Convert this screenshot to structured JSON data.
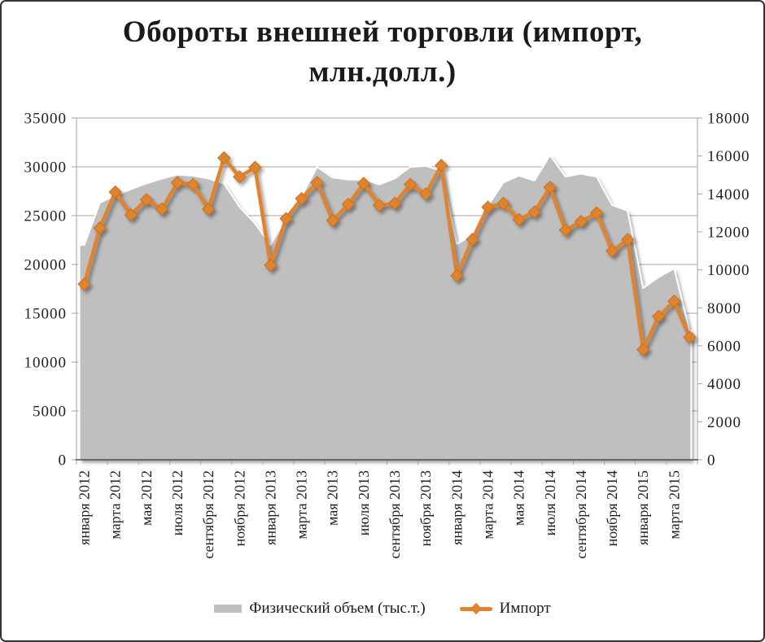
{
  "window": {
    "background": "#ffffff",
    "frame_border_color": "#333333"
  },
  "chart_data": {
    "type": "combo",
    "title": "Обороты внешней торговли (импорт, млн.долл.)",
    "title_lines": [
      "Обороты внешней торговли (импорт,",
      "млн.долл.)"
    ],
    "n_points": 40,
    "x_tick_label_every": 2,
    "x_tick_labels": [
      "января 2012",
      "марта 2012",
      "мая 2012",
      "июля 2012",
      "сентября 2012",
      "ноября 2012",
      "января 2013",
      "марта 2013",
      "мая 2013",
      "июля 2013",
      "сентября 2013",
      "ноября 2013",
      "января 2014",
      "марта 2014",
      "мая 2014",
      "июля 2014",
      "сентября 2014",
      "ноября 2014",
      "января 2015",
      "марта 2015"
    ],
    "left_axis": {
      "min": 0,
      "max": 35000,
      "step": 5000,
      "tick_labels": [
        "0",
        "5000",
        "10000",
        "15000",
        "20000",
        "25000",
        "30000",
        "35000"
      ]
    },
    "right_axis": {
      "min": 0,
      "max": 18000,
      "step": 2000,
      "tick_labels": [
        "0",
        "2000",
        "4000",
        "6000",
        "8000",
        "10000",
        "12000",
        "14000",
        "16000",
        "18000"
      ]
    },
    "grid": "horizontal",
    "legend_position": "bottom",
    "colors": {
      "area": "#bfbfbf",
      "line": "#e0832f",
      "line_edge": "#c8701f",
      "gridline": "#a3a3a3",
      "axis_line": "#a3a3a3",
      "x_axis_line": "#4d4d4d",
      "text": "#1f1f1f"
    },
    "series": [
      {
        "name": "Физический объем (тыс.т.)",
        "type": "area",
        "axis": "left",
        "color": "#bfbfbf",
        "values": [
          22000,
          26300,
          27100,
          27700,
          28300,
          28800,
          29200,
          29100,
          28800,
          28300,
          25900,
          24200,
          22000,
          24800,
          27000,
          30000,
          28900,
          28700,
          28700,
          28200,
          28800,
          30000,
          30100,
          29600,
          22100,
          23000,
          26000,
          28400,
          29100,
          28600,
          31200,
          29000,
          29300,
          29000,
          26100,
          25500,
          17600,
          18700,
          19600,
          13200
        ]
      },
      {
        "name": "Импорт",
        "type": "line",
        "axis": "right",
        "color": "#e0832f",
        "marker": "diamond",
        "values": [
          9250,
          12200,
          14100,
          12900,
          13700,
          13200,
          14600,
          14500,
          13200,
          15900,
          14900,
          15400,
          10250,
          12700,
          13750,
          14600,
          12600,
          13450,
          14550,
          13400,
          13500,
          14500,
          14000,
          15500,
          9700,
          11600,
          13300,
          13500,
          12650,
          13050,
          14350,
          12100,
          12550,
          13000,
          11000,
          11600,
          5800,
          7550,
          8350,
          6450
        ]
      }
    ],
    "legend_swatches": [
      "area-rectangle-gray",
      "line-with-diamond-orange"
    ]
  }
}
